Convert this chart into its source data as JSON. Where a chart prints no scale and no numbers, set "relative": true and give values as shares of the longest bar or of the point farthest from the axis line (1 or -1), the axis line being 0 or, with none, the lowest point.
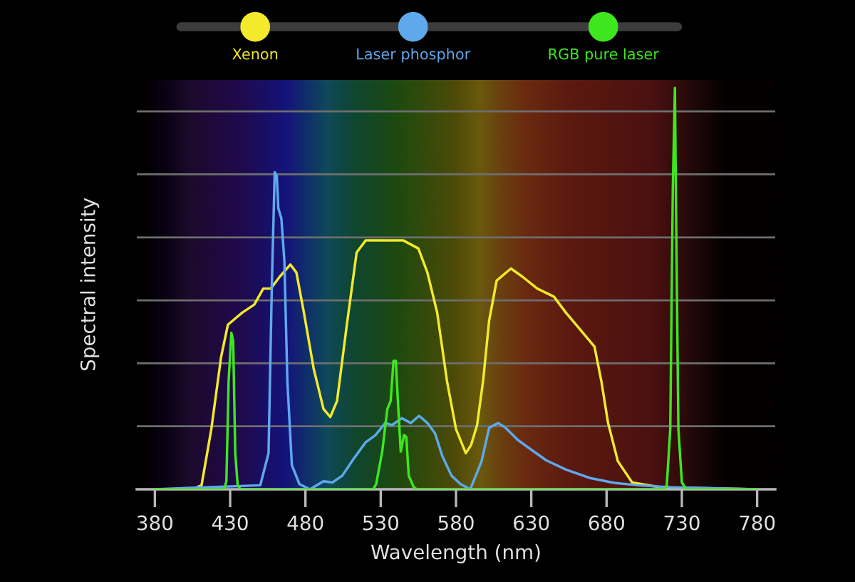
{
  "chart_data": {
    "type": "line",
    "relative": true,
    "xlabel": "Wavelength (nm)",
    "ylabel": "Spectral intensity",
    "xlim": [
      368,
      792
    ],
    "xticks": [
      380,
      430,
      480,
      530,
      580,
      630,
      680,
      730,
      780
    ],
    "grid": "y",
    "legend": "top",
    "series": [
      {
        "name": "Xenon",
        "color": "#f2ea2a",
        "x": [
          380,
          405,
          411,
          417.5,
          424,
          428.5,
          438,
          446,
          452,
          457,
          463,
          470,
          474,
          479,
          485.5,
          492,
          496.5,
          501,
          507.5,
          514,
          520,
          533,
          545,
          555,
          561,
          567.5,
          574,
          580,
          586.5,
          590,
          594,
          598,
          602,
          607,
          616.5,
          624,
          634,
          645,
          653,
          662,
          672,
          676.5,
          681,
          687.5,
          697,
          716,
          780
        ],
        "values": [
          0,
          0,
          0.01,
          0.15,
          0.33,
          0.41,
          0.44,
          0.46,
          0.5,
          0.5,
          0.53,
          0.56,
          0.54,
          0.44,
          0.3,
          0.2,
          0.18,
          0.22,
          0.41,
          0.59,
          0.62,
          0.62,
          0.62,
          0.6,
          0.54,
          0.44,
          0.27,
          0.15,
          0.09,
          0.11,
          0.16,
          0.27,
          0.42,
          0.52,
          0.55,
          0.53,
          0.5,
          0.48,
          0.44,
          0.4,
          0.355,
          0.27,
          0.165,
          0.07,
          0.017,
          0.005,
          0
        ]
      },
      {
        "name": "Laser phosphor",
        "color": "#5ea8ec",
        "x": [
          380,
          450,
          455.5,
          457.7,
          459.6,
          461,
          462,
          464,
          466,
          468,
          471,
          476,
          483,
          492,
          498,
          504.5,
          512,
          520,
          526.5,
          533,
          537.5,
          544,
          550,
          555.5,
          561,
          566,
          571,
          577,
          583,
          589.5,
          597,
          602,
          608,
          613,
          621,
          631,
          640,
          653,
          669,
          685,
          701,
          723,
          780
        ],
        "values": [
          0,
          0.01,
          0.09,
          0.51,
          0.79,
          0.78,
          0.7,
          0.675,
          0.57,
          0.27,
          0.06,
          0.013,
          0,
          0.02,
          0.017,
          0.034,
          0.076,
          0.117,
          0.135,
          0.165,
          0.16,
          0.177,
          0.165,
          0.183,
          0.165,
          0.14,
          0.082,
          0.034,
          0.013,
          0,
          0.07,
          0.153,
          0.165,
          0.153,
          0.123,
          0.096,
          0.072,
          0.049,
          0.028,
          0.016,
          0.01,
          0.005,
          0
        ]
      },
      {
        "name": "RGB pure laser",
        "color": "#3ee61e",
        "x": [
          380,
          426,
          427.5,
          429,
          430.8,
          432,
          433.4,
          435,
          437,
          525,
          527,
          531,
          534.4,
          536.6,
          538.5,
          540,
          541.7,
          543.3,
          545.5,
          547,
          548.6,
          552,
          554,
          718,
          720,
          722.3,
          724,
          725.4,
          726,
          727.7,
          730,
          733,
          780
        ],
        "values": [
          0,
          0,
          0.02,
          0.27,
          0.39,
          0.37,
          0.09,
          0.01,
          0,
          0,
          0.013,
          0.094,
          0.2,
          0.22,
          0.32,
          0.32,
          0.2,
          0.094,
          0.135,
          0.13,
          0.034,
          0.005,
          0,
          0,
          0.01,
          0.15,
          0.75,
          1.0,
          0.75,
          0.15,
          0.017,
          0,
          0
        ]
      }
    ]
  }
}
